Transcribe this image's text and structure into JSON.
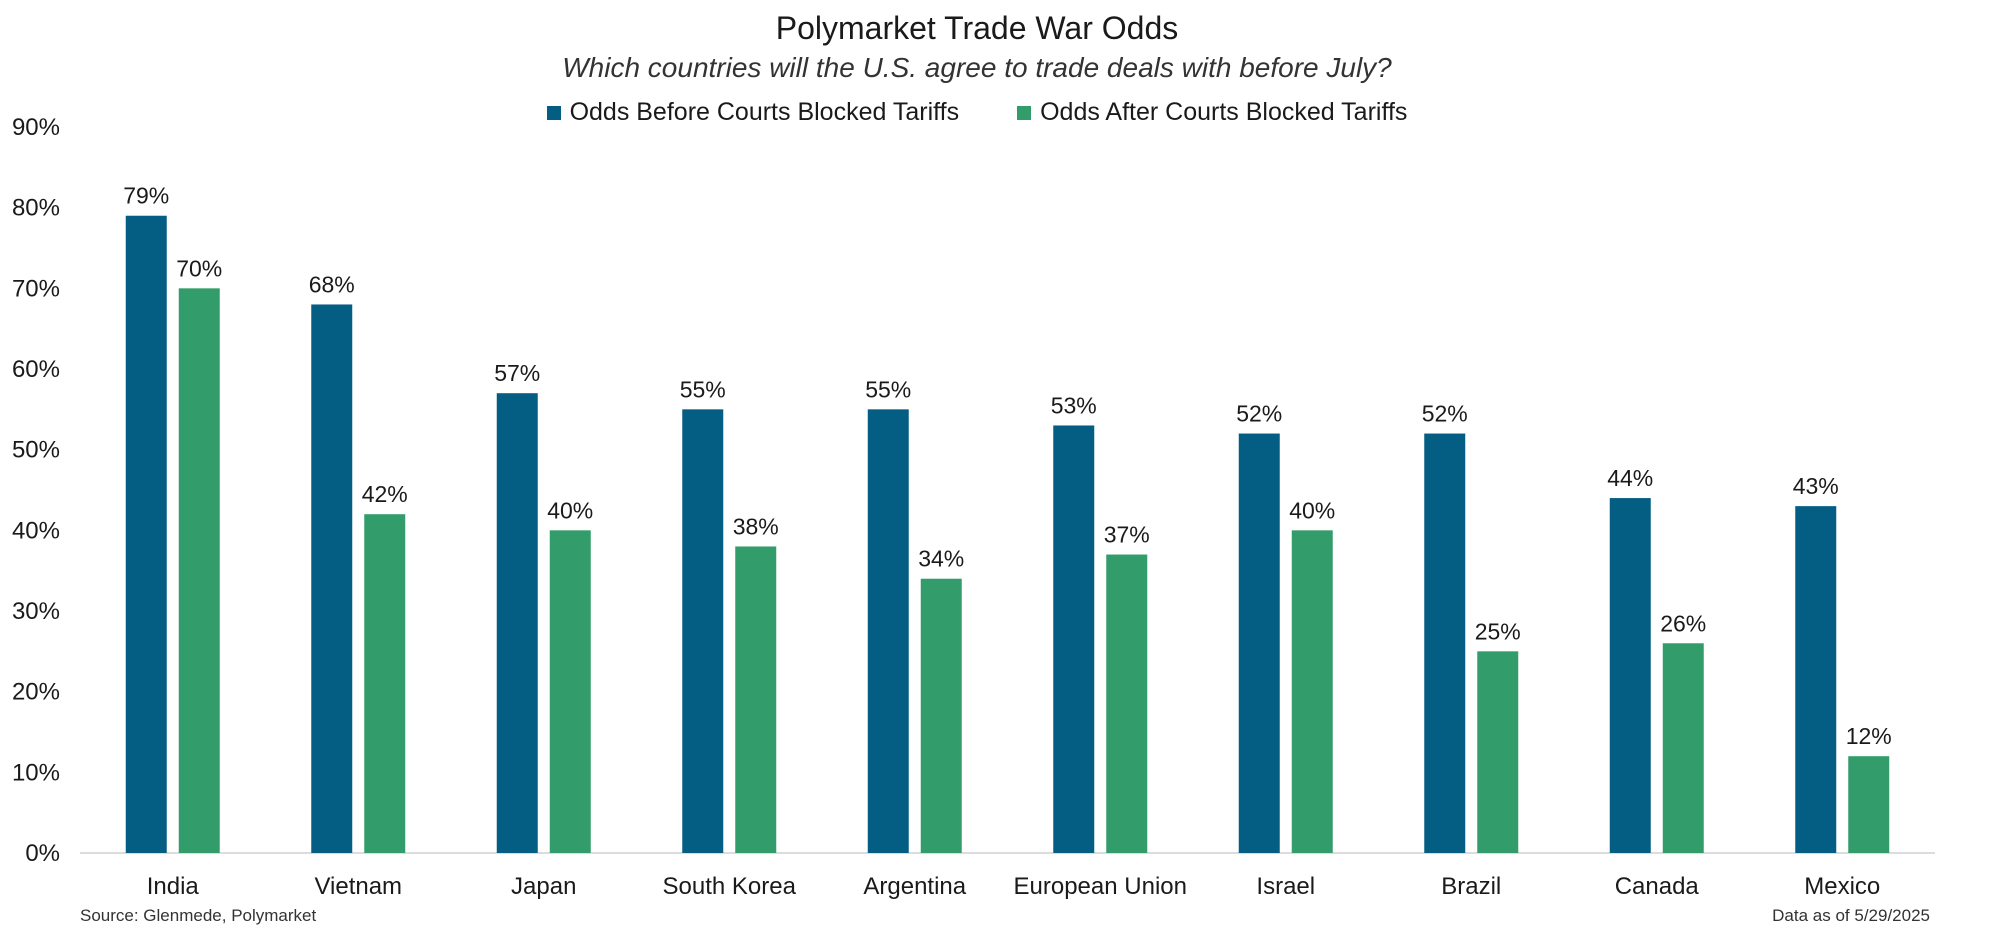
{
  "chart_data": {
    "type": "bar",
    "title": "Polymarket Trade War Odds",
    "subtitle": "Which countries will the U.S. agree to trade deals with before July?",
    "categories": [
      "India",
      "Vietnam",
      "Japan",
      "South Korea",
      "Argentina",
      "European Union",
      "Israel",
      "Brazil",
      "Canada",
      "Mexico"
    ],
    "series": [
      {
        "name": "Odds Before Courts Blocked Tariffs",
        "color": "#045e84",
        "values": [
          79,
          68,
          57,
          55,
          55,
          53,
          52,
          52,
          44,
          43
        ]
      },
      {
        "name": "Odds After Courts Blocked Tariffs",
        "color": "#339c6b",
        "values": [
          70,
          42,
          40,
          38,
          34,
          37,
          40,
          25,
          26,
          12
        ]
      }
    ],
    "ylim": [
      0,
      90
    ],
    "yticks": [
      "0%",
      "10%",
      "20%",
      "30%",
      "40%",
      "50%",
      "60%",
      "70%",
      "80%",
      "90%"
    ],
    "value_suffix": "%",
    "xlabel": "",
    "ylabel": "",
    "grid": false,
    "legend_position": "top-center"
  },
  "footer": {
    "source": "Source: Glenmede, Polymarket",
    "date": "Data as of 5/29/2025"
  }
}
